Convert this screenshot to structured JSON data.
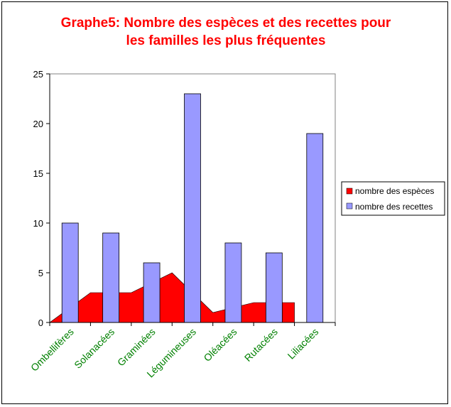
{
  "chart_data": {
    "type": "bar",
    "title_lines": [
      "Graphe5: Nombre des espèces et des recettes pour",
      "les familles les plus fréquentes"
    ],
    "categories": [
      "Ombellifères",
      "Solanacées",
      "Graminées",
      "Légumineuses",
      "Oléacées",
      "Rutacées",
      "Liliacées"
    ],
    "series": [
      {
        "name": "nombre des espèces",
        "type": "area",
        "color": "#ff0000",
        "values": [
          0,
          3,
          3,
          5,
          1,
          2,
          2
        ]
      },
      {
        "name": "nombre des recettes",
        "type": "bar",
        "color": "#9999ff",
        "values": [
          10,
          9,
          6,
          23,
          8,
          7,
          19
        ]
      }
    ],
    "ylim": [
      0,
      25
    ],
    "yticks": [
      0,
      5,
      10,
      15,
      20,
      25
    ],
    "grid": false,
    "legend_position": "right",
    "colors": {
      "title": "#ff0000",
      "category_labels": "#008000"
    }
  }
}
